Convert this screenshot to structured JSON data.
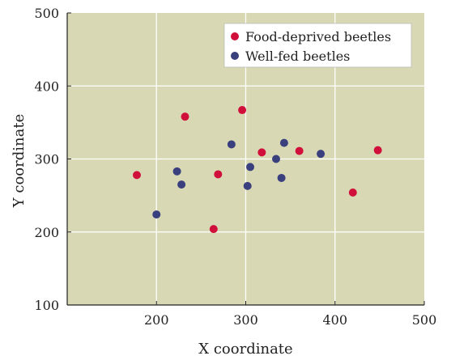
{
  "chart_data": {
    "type": "scatter",
    "title": "",
    "xlabel": "X coordinate",
    "ylabel": "Y coordinate",
    "xlim": [
      100,
      500
    ],
    "ylim": [
      100,
      500
    ],
    "xticks": [
      200,
      300,
      400,
      500
    ],
    "yticks": [
      100,
      200,
      300,
      400,
      500
    ],
    "grid": true,
    "legend_position": "top-right",
    "background_color": "#d8d9b4",
    "grid_color": "#ffffff",
    "series": [
      {
        "name": "Food-deprived beetles",
        "color": "#d0103a",
        "points": [
          {
            "x": 178,
            "y": 278
          },
          {
            "x": 232,
            "y": 358
          },
          {
            "x": 264,
            "y": 204
          },
          {
            "x": 269,
            "y": 279
          },
          {
            "x": 296,
            "y": 367
          },
          {
            "x": 318,
            "y": 309
          },
          {
            "x": 360,
            "y": 311
          },
          {
            "x": 420,
            "y": 254
          },
          {
            "x": 448,
            "y": 312
          }
        ]
      },
      {
        "name": "Well-fed beetles",
        "color": "#3a3f7e",
        "points": [
          {
            "x": 200,
            "y": 224
          },
          {
            "x": 223,
            "y": 283
          },
          {
            "x": 228,
            "y": 265
          },
          {
            "x": 284,
            "y": 320
          },
          {
            "x": 302,
            "y": 263
          },
          {
            "x": 305,
            "y": 289
          },
          {
            "x": 334,
            "y": 300
          },
          {
            "x": 340,
            "y": 274
          },
          {
            "x": 343,
            "y": 322
          },
          {
            "x": 384,
            "y": 307
          }
        ]
      }
    ]
  }
}
